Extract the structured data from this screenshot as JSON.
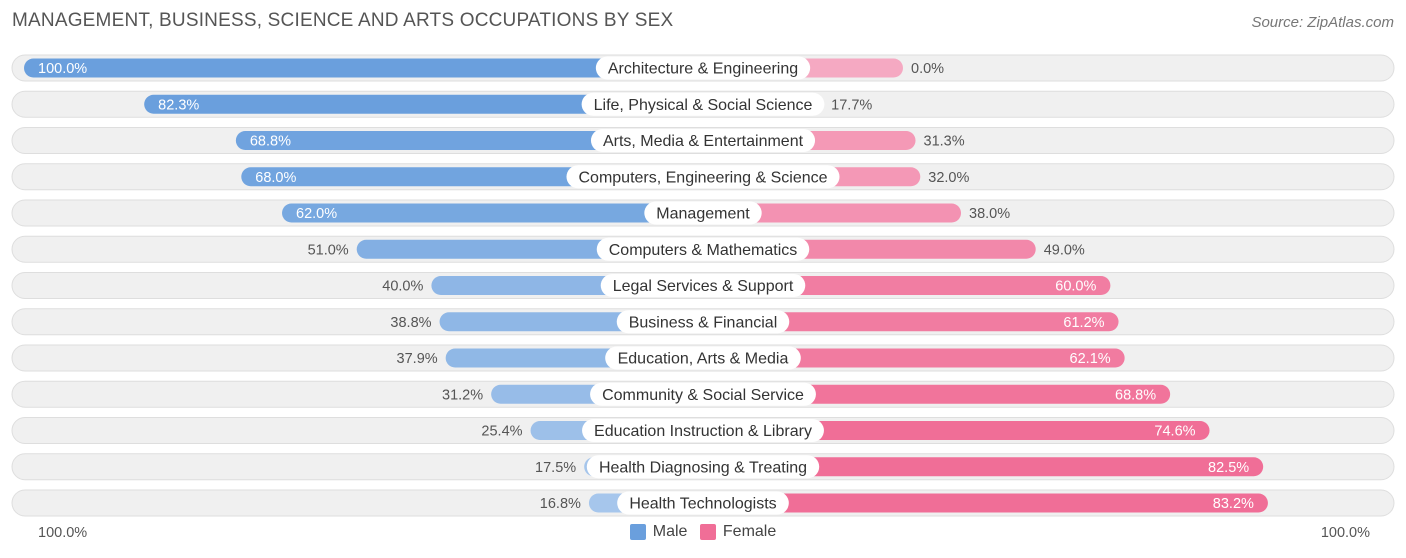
{
  "header": {
    "title": "MANAGEMENT, BUSINESS, SCIENCE AND ARTS OCCUPATIONS BY SEX",
    "source": "Source: ZipAtlas.com"
  },
  "axis": {
    "left_label": "100.0%",
    "right_label": "100.0%"
  },
  "legend": {
    "male_label": "Male",
    "female_label": "Female"
  },
  "colors": {
    "male_strong": "#6a9fdd",
    "male_light": "#a8c7ec",
    "female_strong": "#f06e97",
    "female_light": "#f5a9c2",
    "row_background": "#f0f0f0",
    "row_border": "#dedede"
  },
  "chart_data": {
    "type": "bar",
    "orientation": "horizontal-diverging",
    "title": "MANAGEMENT, BUSINESS, SCIENCE AND ARTS OCCUPATIONS BY SEX",
    "xlim": [
      -100,
      100
    ],
    "categories": [
      "Architecture & Engineering",
      "Life, Physical & Social Science",
      "Arts, Media & Entertainment",
      "Computers, Engineering & Science",
      "Management",
      "Computers & Mathematics",
      "Legal Services & Support",
      "Business & Financial",
      "Education, Arts & Media",
      "Community & Social Service",
      "Education Instruction & Library",
      "Health Diagnosing & Treating",
      "Health Technologists"
    ],
    "series": [
      {
        "name": "Male",
        "values": [
          100.0,
          82.3,
          68.8,
          68.0,
          62.0,
          51.0,
          40.0,
          38.8,
          37.9,
          31.2,
          25.4,
          17.5,
          16.8
        ],
        "labels": [
          "100.0%",
          "82.3%",
          "68.8%",
          "68.0%",
          "62.0%",
          "51.0%",
          "40.0%",
          "38.8%",
          "37.9%",
          "31.2%",
          "25.4%",
          "17.5%",
          "16.8%"
        ]
      },
      {
        "name": "Female",
        "values": [
          0.0,
          17.7,
          31.3,
          32.0,
          38.0,
          49.0,
          60.0,
          61.2,
          62.1,
          68.8,
          74.6,
          82.5,
          83.2
        ],
        "labels": [
          "0.0%",
          "17.7%",
          "31.3%",
          "32.0%",
          "38.0%",
          "49.0%",
          "60.0%",
          "61.2%",
          "62.1%",
          "68.8%",
          "74.6%",
          "82.5%",
          "83.2%"
        ]
      }
    ]
  }
}
